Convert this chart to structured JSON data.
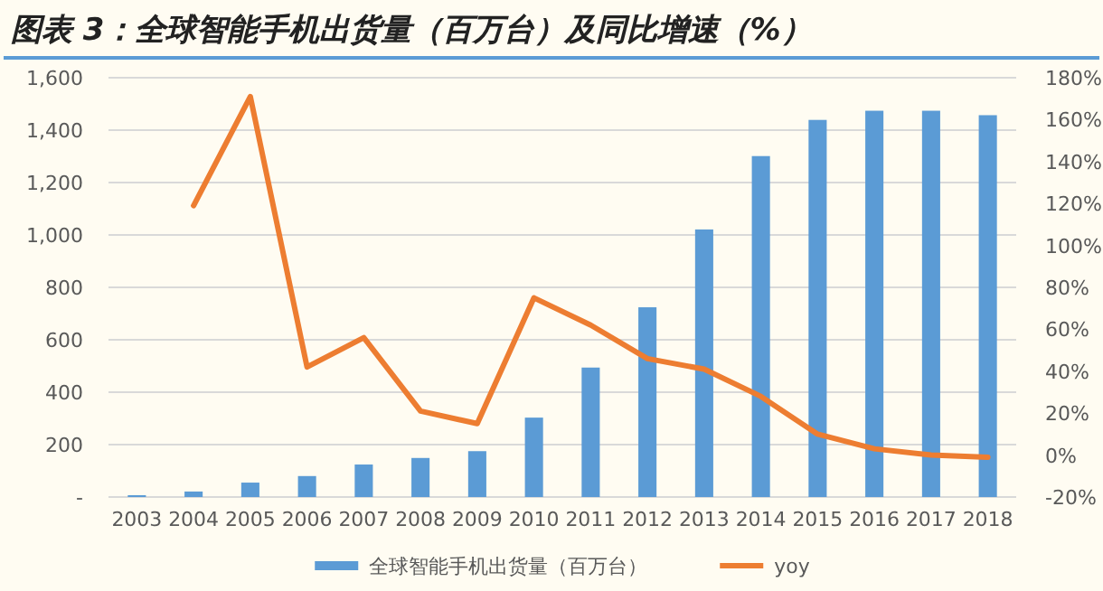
{
  "chart_data": {
    "type": "bar",
    "title": "图表 3：全球智能手机出货量（百万台）及同比增速（%）",
    "categories": [
      "2003",
      "2004",
      "2005",
      "2006",
      "2007",
      "2008",
      "2009",
      "2010",
      "2011",
      "2012",
      "2013",
      "2014",
      "2015",
      "2016",
      "2017",
      "2018"
    ],
    "series": [
      {
        "name": "全球智能手机出货量（百万台）",
        "color": "#5b9bd5",
        "values": [
          7,
          21,
          55,
          80,
          124,
          149,
          175,
          303,
          494,
          724,
          1021,
          1301,
          1439,
          1474,
          1474,
          1457
        ]
      },
      {
        "name": "yoy",
        "type": "line",
        "axis": "y2",
        "color": "#ed7d31",
        "values": [
          null,
          119,
          171,
          42,
          56,
          21,
          15,
          75,
          62,
          46,
          41,
          28,
          10,
          3,
          0,
          -1
        ]
      }
    ],
    "ylim": [
      0,
      1600
    ],
    "yticks": [
      {
        "value": 0,
        "label": "-"
      },
      200,
      400,
      600,
      800,
      {
        "value": 1000,
        "label": "1,000"
      },
      {
        "value": 1200,
        "label": "1,200"
      },
      {
        "value": 1400,
        "label": "1,400"
      },
      {
        "value": 1600,
        "label": "1,600"
      }
    ],
    "y2lim": [
      -20,
      180
    ],
    "y2ticks": [
      {
        "value": -20,
        "label": "-20%"
      },
      {
        "value": 0,
        "label": "0%"
      },
      {
        "value": 20,
        "label": "20%"
      },
      {
        "value": 40,
        "label": "40%"
      },
      {
        "value": 60,
        "label": "60%"
      },
      {
        "value": 80,
        "label": "80%"
      },
      {
        "value": 100,
        "label": "100%"
      },
      {
        "value": 120,
        "label": "120%"
      },
      {
        "value": 140,
        "label": "140%"
      },
      {
        "value": 160,
        "label": "160%"
      },
      {
        "value": 180,
        "label": "180%"
      }
    ],
    "grid": "y",
    "legend": "bottom"
  }
}
